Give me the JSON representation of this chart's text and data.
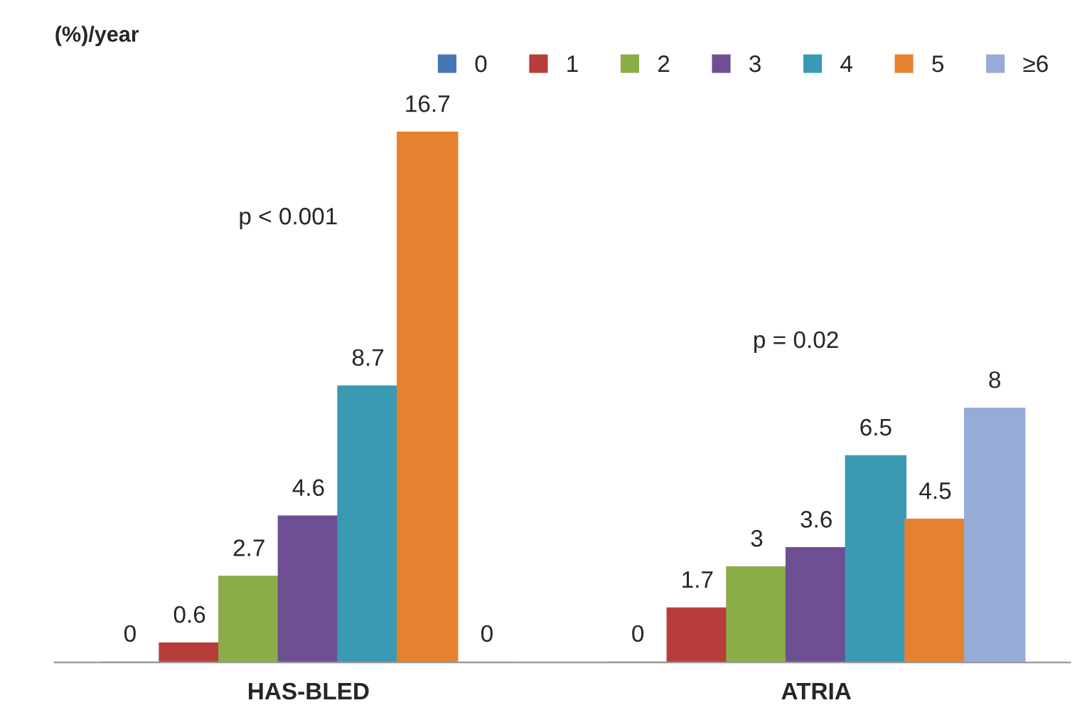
{
  "chart_data": {
    "type": "bar",
    "ylabel": "(%)/year",
    "categories": [
      "HAS-BLED",
      "ATRIA"
    ],
    "series": [
      {
        "name": "0",
        "color": "#4a74b8",
        "values": [
          0,
          0
        ]
      },
      {
        "name": "1",
        "color": "#b83d3a",
        "values": [
          0.6,
          1.7
        ]
      },
      {
        "name": "2",
        "color": "#8aad48",
        "values": [
          2.7,
          3
        ]
      },
      {
        "name": "3",
        "color": "#6e4f94",
        "values": [
          4.6,
          3.6
        ]
      },
      {
        "name": "4",
        "color": "#3b9ab3",
        "values": [
          8.7,
          6.5
        ]
      },
      {
        "name": "5",
        "color": "#e5822f",
        "values": [
          16.7,
          4.5
        ]
      },
      {
        "name": "≥6",
        "color": "#95acd6",
        "values": [
          0,
          8
        ]
      }
    ],
    "annotations": [
      "p < 0.001",
      "p = 0.02"
    ],
    "data_labels": true,
    "legend": "top right",
    "grid": false
  }
}
